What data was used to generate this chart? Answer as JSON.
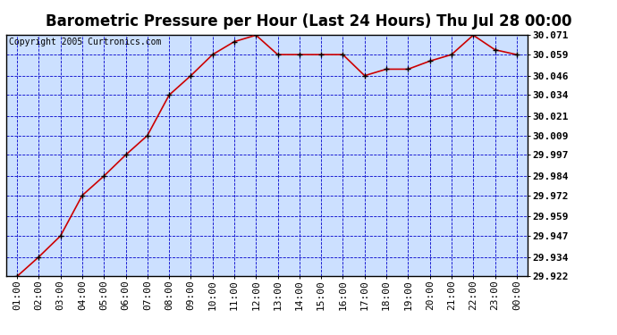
{
  "title": "Barometric Pressure per Hour (Last 24 Hours) Thu Jul 28 00:00",
  "copyright": "Copyright 2005 Curtronics.com",
  "x_labels": [
    "01:00",
    "02:00",
    "03:00",
    "04:00",
    "05:00",
    "06:00",
    "07:00",
    "08:00",
    "09:00",
    "10:00",
    "11:00",
    "12:00",
    "13:00",
    "14:00",
    "15:00",
    "16:00",
    "17:00",
    "18:00",
    "19:00",
    "20:00",
    "21:00",
    "22:00",
    "23:00",
    "00:00"
  ],
  "y_values": [
    29.922,
    29.934,
    29.947,
    29.972,
    29.984,
    29.997,
    30.009,
    30.034,
    30.046,
    30.059,
    30.067,
    30.071,
    30.059,
    30.059,
    30.059,
    30.059,
    30.046,
    30.05,
    30.05,
    30.055,
    30.059,
    30.071,
    30.062,
    30.059
  ],
  "y_ticks": [
    29.922,
    29.934,
    29.947,
    29.959,
    29.972,
    29.984,
    29.997,
    30.009,
    30.021,
    30.034,
    30.046,
    30.059,
    30.071
  ],
  "y_min": 29.922,
  "y_max": 30.071,
  "line_color": "#cc0000",
  "marker_color": "#000000",
  "bg_color": "#cce0ff",
  "outer_bg": "#ffffff",
  "grid_color": "#0000cc",
  "title_fontsize": 12,
  "tick_fontsize": 8,
  "copyright_fontsize": 7
}
